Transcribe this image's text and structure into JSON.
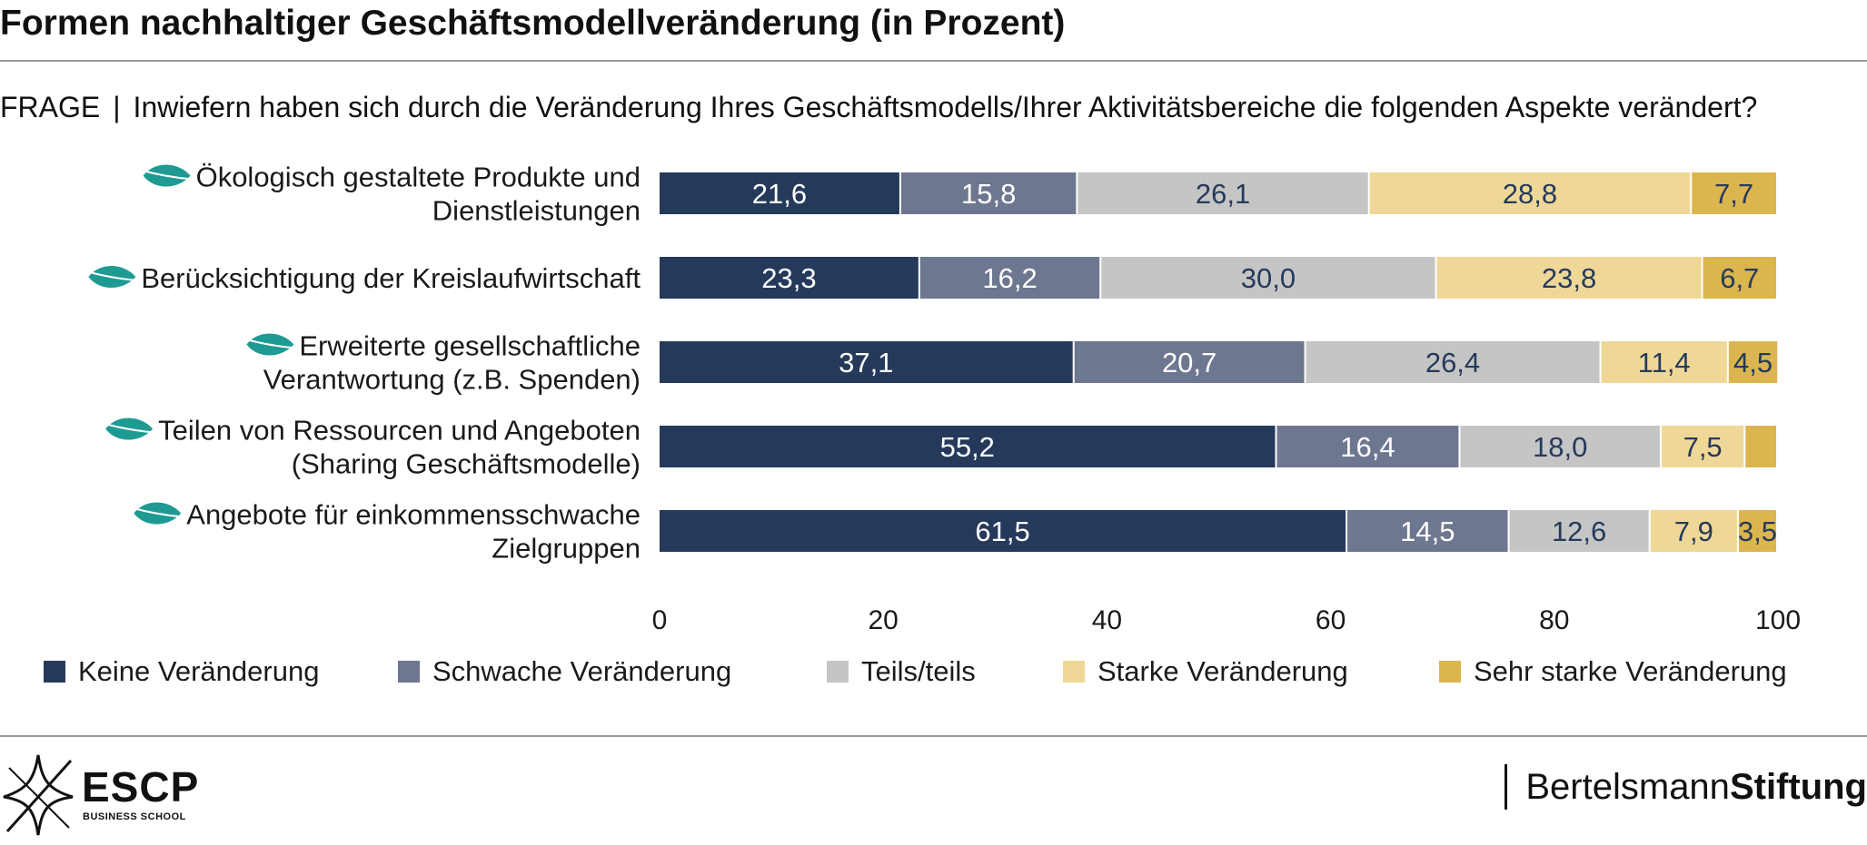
{
  "title": "Formen nachhaltiger Geschäftsmodellveränderung (in Prozent)",
  "question": {
    "prefix": "FRAGE",
    "separator": "|",
    "text": "Inwiefern haben sich durch die Veränderung Ihres Geschäftsmodells/Ihrer Aktivitätsbereiche die folgenden Aspekte verändert?"
  },
  "colors": {
    "keine": "#253a5b",
    "schwach": "#6e7790",
    "teils": "#c5c5c5",
    "stark": "#efd897",
    "sehr_stark": "#dbb54e",
    "leaf": "#1f9a93",
    "dark_label_text": "#ffffff",
    "light_label_text": "#253a5b"
  },
  "chart_data": {
    "type": "bar",
    "orientation": "horizontal",
    "stacked": true,
    "categories": [
      [
        "Ökologisch gestaltete Produkte und",
        "Dienstleistungen"
      ],
      [
        "Berücksichtigung der Kreislaufwirtschaft"
      ],
      [
        "Erweiterte gesellschaftliche",
        "Verantwortung (z.B. Spenden)"
      ],
      [
        "Teilen von Ressourcen und Angeboten",
        "(Sharing Geschäftsmodelle)"
      ],
      [
        "Angebote für einkommensschwache",
        "Zielgruppen"
      ]
    ],
    "series": [
      {
        "name": "Keine Veränderung",
        "color": "#253a5b",
        "values": [
          21.6,
          23.3,
          37.1,
          55.2,
          61.5
        ],
        "labels": [
          "21,6",
          "23,3",
          "37,1",
          "55,2",
          "61,5"
        ]
      },
      {
        "name": "Schwache Veränderung",
        "color": "#6e7790",
        "values": [
          15.8,
          16.2,
          20.7,
          16.4,
          14.5
        ],
        "labels": [
          "15,8",
          "16,2",
          "20,7",
          "16,4",
          "14,5"
        ]
      },
      {
        "name": "Teils/teils",
        "color": "#c5c5c5",
        "values": [
          26.1,
          30.0,
          26.4,
          18.0,
          12.6
        ],
        "labels": [
          "26,1",
          "30,0",
          "26,4",
          "18,0",
          "12,6"
        ]
      },
      {
        "name": "Starke Veränderung",
        "color": "#efd897",
        "values": [
          28.8,
          23.8,
          11.4,
          7.5,
          7.9
        ],
        "labels": [
          "28,8",
          "23,8",
          "11,4",
          "7,5",
          "7,9"
        ]
      },
      {
        "name": "Sehr starke Veränderung",
        "color": "#dbb54e",
        "values": [
          7.7,
          6.7,
          4.5,
          2.9,
          3.5
        ],
        "labels": [
          "7,7",
          "6,7",
          "4,5",
          "",
          "3,5"
        ]
      }
    ],
    "xlim": [
      0,
      100
    ],
    "xticks": [
      "0",
      "20",
      "40",
      "60",
      "80",
      "100"
    ],
    "grid": false,
    "legend_position": "bottom"
  },
  "legend": [
    {
      "label": "Keine Veränderung",
      "color": "#253a5b"
    },
    {
      "label": "Schwache Veränderung",
      "color": "#6e7790"
    },
    {
      "label": "Teils/teils",
      "color": "#c5c5c5"
    },
    {
      "label": "Starke Veränderung",
      "color": "#efd897"
    },
    {
      "label": "Sehr starke Veränderung",
      "color": "#dbb54e"
    }
  ],
  "footer": {
    "escp_name": "ESCP",
    "escp_sub": "BUSINESS SCHOOL",
    "bertelsmann_light": "Bertelsmann",
    "bertelsmann_bold": "Stiftung"
  },
  "icons": {
    "category": "leaf-icon",
    "escp_logo": "star-burst-icon"
  }
}
